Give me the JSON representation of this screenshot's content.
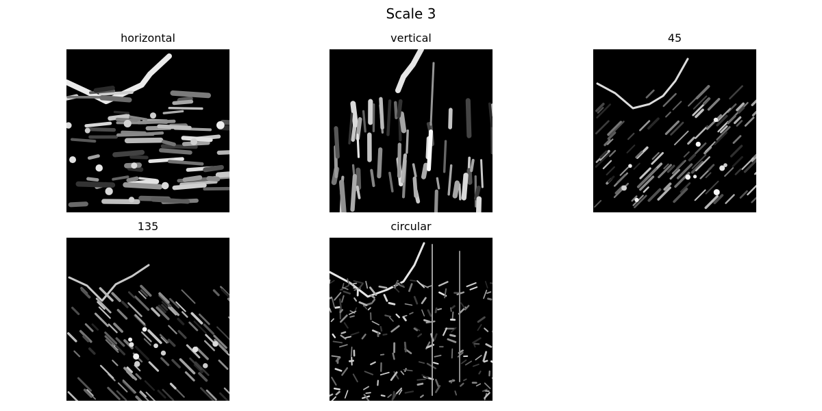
{
  "figure": {
    "title": "Scale 3",
    "panels": [
      {
        "title": "horizontal",
        "orientation": "horizontal"
      },
      {
        "title": "vertical",
        "orientation": "vertical"
      },
      {
        "title": "45",
        "orientation": "diag45"
      },
      {
        "title": "135",
        "orientation": "diag135"
      },
      {
        "title": "circular",
        "orientation": "circular"
      }
    ],
    "colormap": "gray",
    "background_color": "#000000"
  }
}
